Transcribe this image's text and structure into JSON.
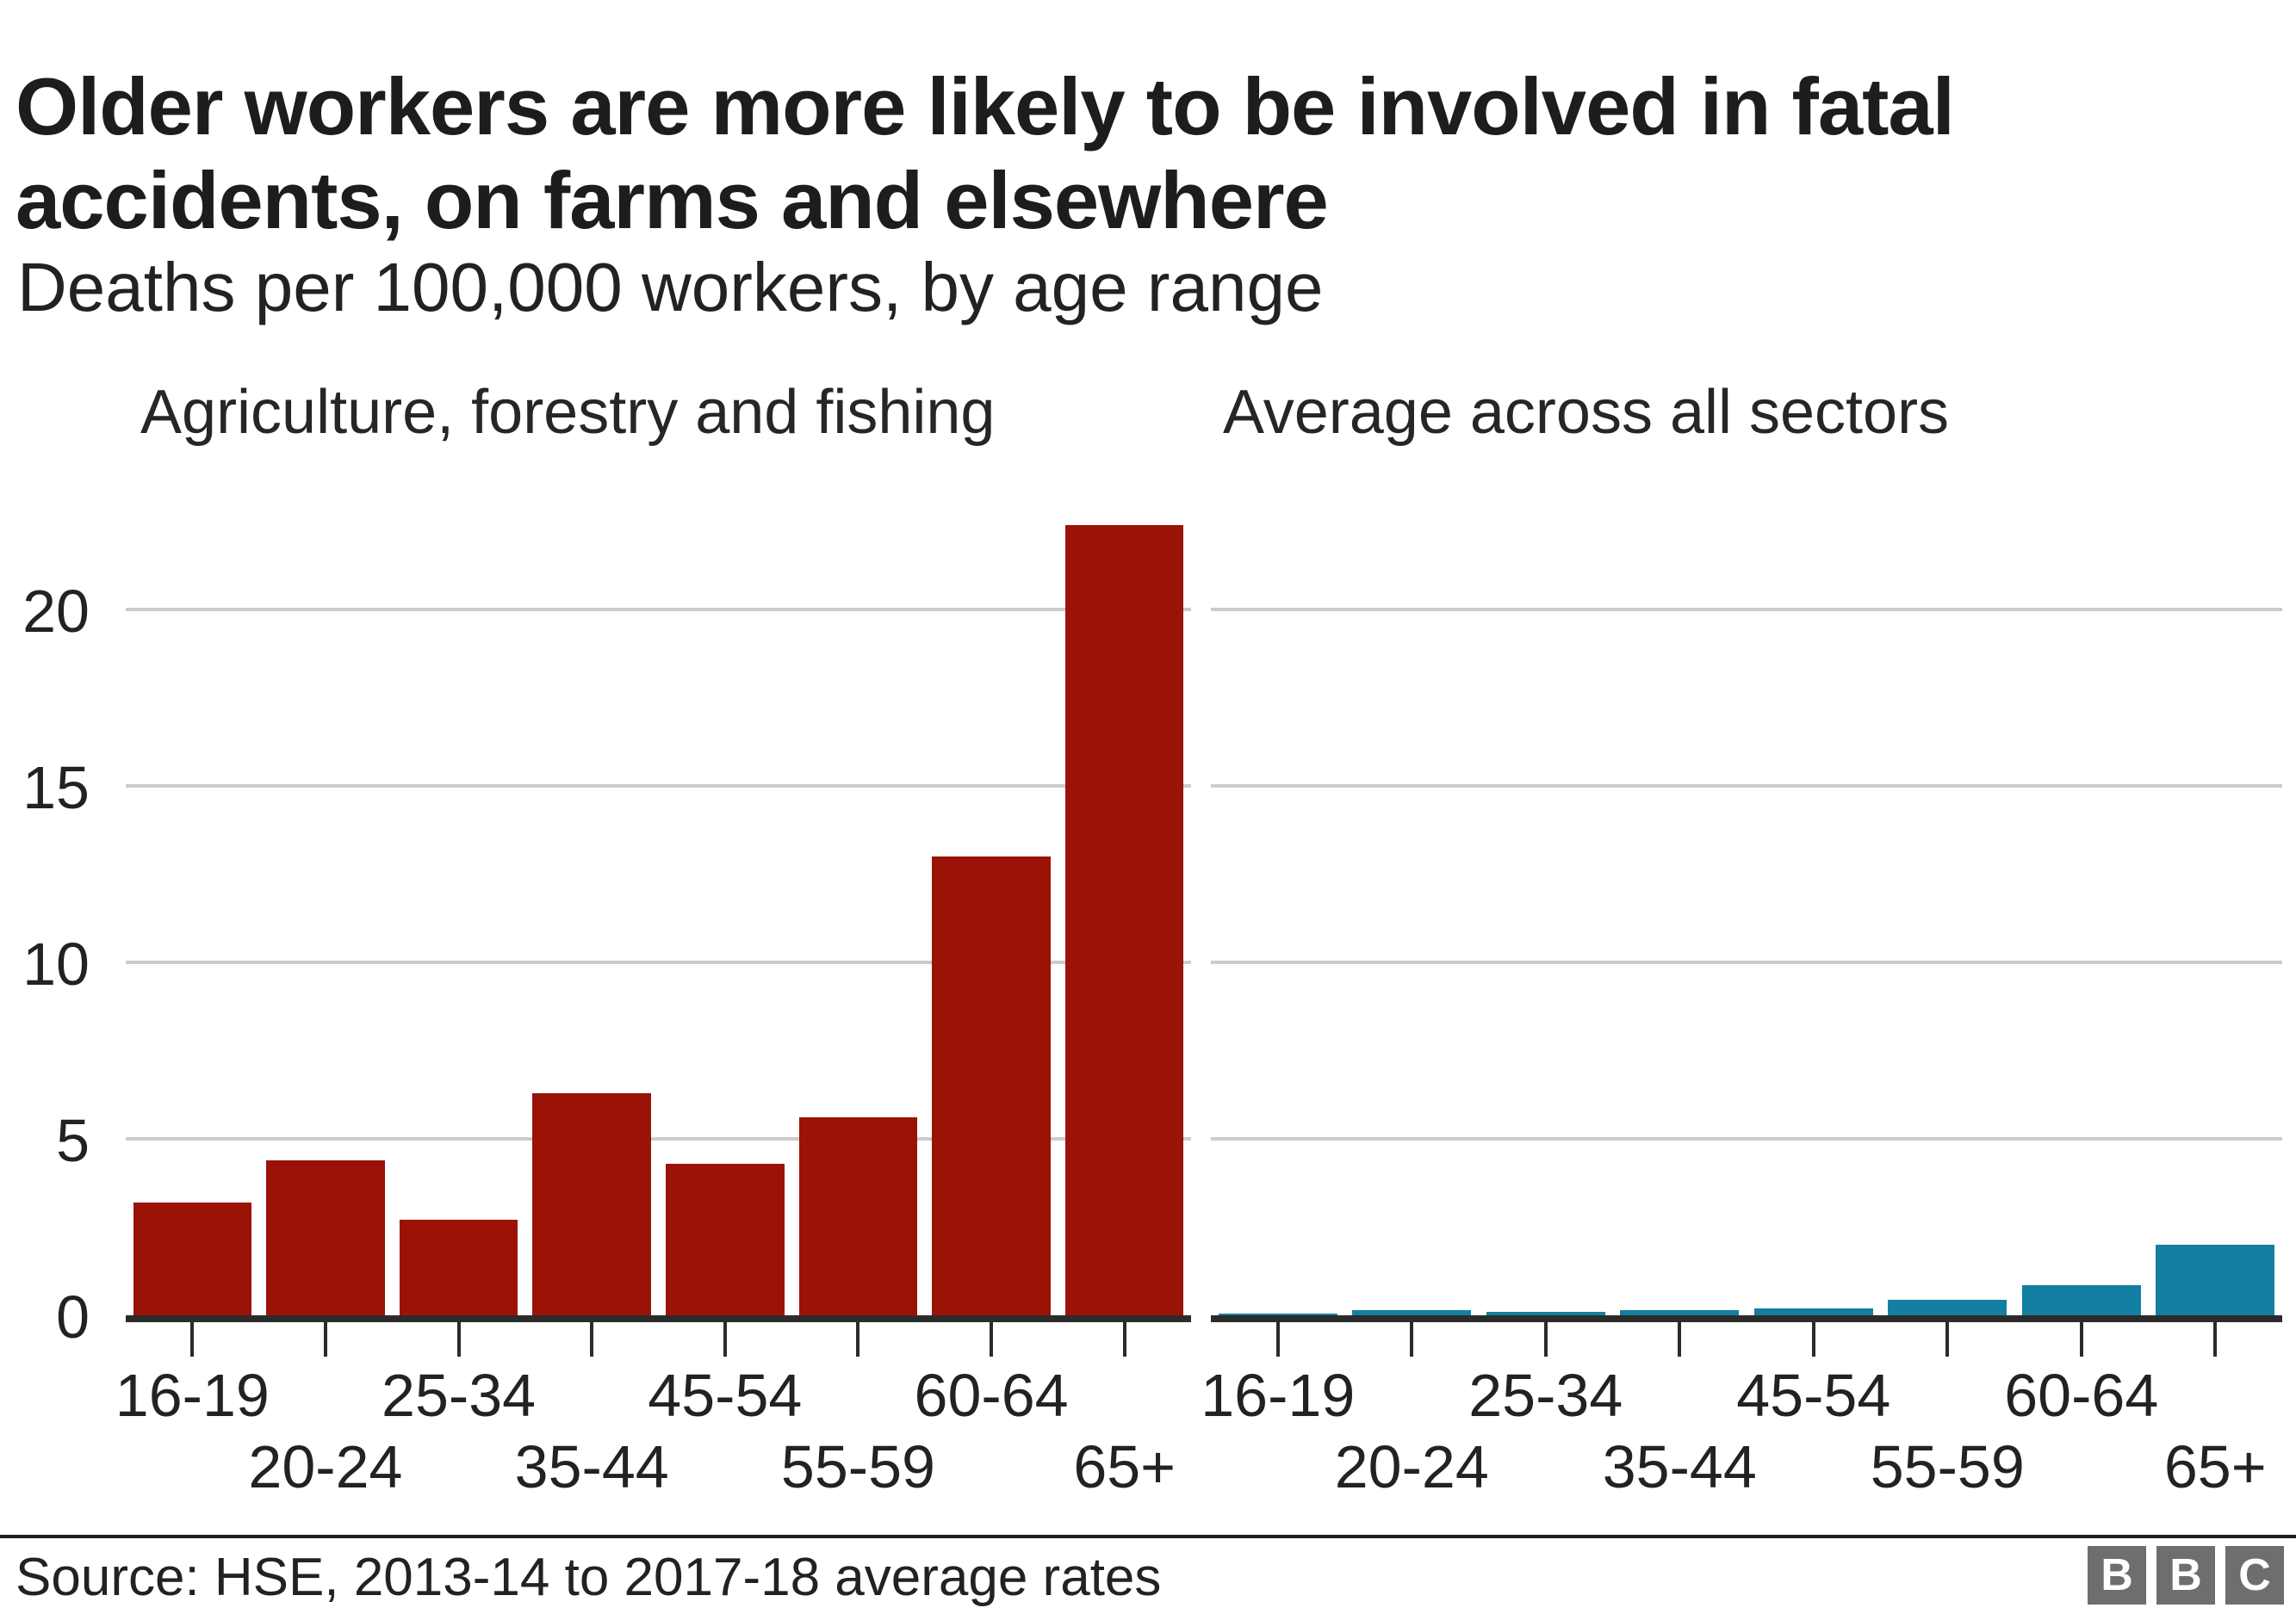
{
  "title": "Older workers are more likely to be involved in fatal accidents, on farms and elsewhere",
  "subtitle": "Deaths per 100,000 workers, by age range",
  "source": "Source: HSE, 2013-14 to 2017-18 average rates",
  "logo": {
    "letters": [
      "B",
      "B",
      "C"
    ]
  },
  "colors": {
    "agriculture_red": "#9a1306",
    "all_sectors_teal": "#1380a1",
    "axis": "#2b2b2b",
    "gridline": "#cccccc",
    "text": "#222222",
    "title": "#1d1d1d",
    "logo_gray": "#6e6e6e"
  },
  "chart_data": {
    "type": "bar",
    "categories": [
      "16-19",
      "20-24",
      "25-34",
      "35-44",
      "45-54",
      "55-59",
      "60-64",
      "65+"
    ],
    "yticks": [
      0,
      5,
      10,
      15,
      20
    ],
    "ylim": [
      0,
      23.6
    ],
    "grid": "horizontal",
    "legend_position": "panel-top-labels",
    "title": "Older workers are more likely to be involved in fatal accidents, on farms and elsewhere",
    "xlabel": "",
    "ylabel": "Deaths per 100,000 workers",
    "series": [
      {
        "name": "Agriculture, forestry and fishing",
        "color": "#9a1306",
        "values": [
          3.2,
          4.4,
          2.7,
          6.3,
          4.3,
          5.6,
          13.0,
          22.4
        ]
      },
      {
        "name": "Average across all sectors",
        "color": "#1380a1",
        "values": [
          0.05,
          0.15,
          0.1,
          0.15,
          0.2,
          0.45,
          0.85,
          2.0
        ]
      }
    ]
  }
}
